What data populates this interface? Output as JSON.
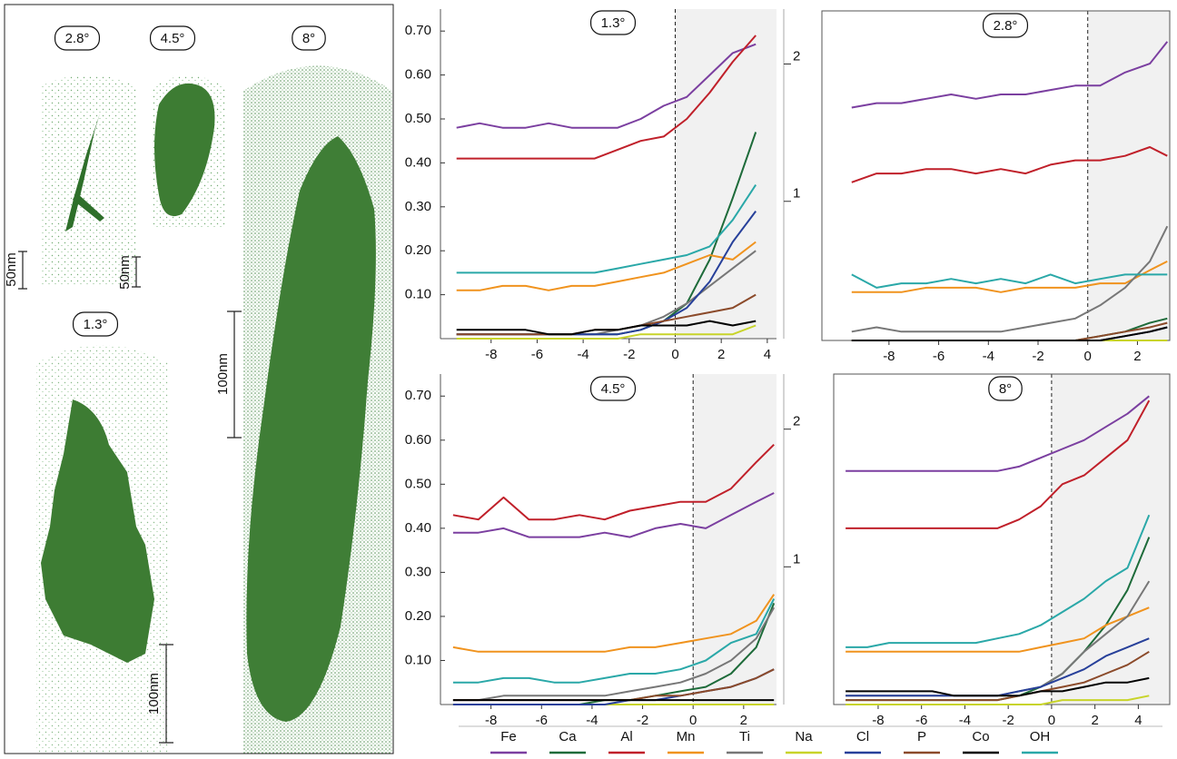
{
  "reconstructions": [
    {
      "label": "2.8°",
      "scale": "50nm"
    },
    {
      "label": "4.5°",
      "scale": "50nm"
    },
    {
      "label": "8°",
      "scale": "100nm"
    },
    {
      "label": "1.3°",
      "scale": "100nm"
    }
  ],
  "chart_data": [
    {
      "type": "line",
      "title": "1.3°",
      "x": [
        -9.5,
        -8.5,
        -7.5,
        -6.5,
        -5.5,
        -4.5,
        -3.5,
        -2.5,
        -1.5,
        -0.5,
        0.5,
        1.5,
        2.5,
        3.5
      ],
      "xlim": [
        -10.2,
        4.4
      ],
      "xticks": [
        -8,
        -6,
        -4,
        -2,
        0,
        2,
        4
      ],
      "ylim": [
        0,
        0.75
      ],
      "yticks": [
        {
          "value": 0.1,
          "label": "0.10"
        },
        {
          "value": 0.2,
          "label": "0.20"
        },
        {
          "value": 0.3,
          "label": "0.30"
        },
        {
          "value": 0.4,
          "label": "0.40"
        },
        {
          "value": 0.5,
          "label": "0.50"
        },
        {
          "value": 0.6,
          "label": "0.60"
        },
        {
          "value": 0.7,
          "label": "0.70"
        }
      ],
      "y2lim": [
        0,
        2.4
      ],
      "y2ticks": [
        1,
        2
      ],
      "series": [
        {
          "name": "Fe",
          "color": "#7b3fa0",
          "values": [
            0.48,
            0.49,
            0.48,
            0.48,
            0.49,
            0.48,
            0.48,
            0.48,
            0.5,
            0.53,
            0.55,
            0.6,
            0.65,
            0.67
          ]
        },
        {
          "name": "Ca",
          "color": "#1e6b3a",
          "values": [
            0.01,
            0.01,
            0.01,
            0.01,
            0.01,
            0.01,
            0.01,
            0.01,
            0.02,
            0.04,
            0.08,
            0.18,
            0.32,
            0.47
          ]
        },
        {
          "name": "Al",
          "color": "#c0202a",
          "values": [
            0.41,
            0.41,
            0.41,
            0.41,
            0.41,
            0.41,
            0.41,
            0.43,
            0.45,
            0.46,
            0.5,
            0.56,
            0.63,
            0.69
          ]
        },
        {
          "name": "Mn",
          "color": "#f0931e",
          "values": [
            0.11,
            0.11,
            0.12,
            0.12,
            0.11,
            0.12,
            0.12,
            0.13,
            0.14,
            0.15,
            0.17,
            0.19,
            0.18,
            0.22
          ]
        },
        {
          "name": "Ti",
          "color": "#777777",
          "values": [
            0.01,
            0.01,
            0.01,
            0.01,
            0.01,
            0.01,
            0.01,
            0.02,
            0.03,
            0.05,
            0.08,
            0.12,
            0.16,
            0.2
          ]
        },
        {
          "name": "Na",
          "color": "#c8d42a",
          "values": [
            0,
            0,
            0,
            0,
            0,
            0,
            0,
            0,
            0.01,
            0.01,
            0.01,
            0.01,
            0.01,
            0.03
          ]
        },
        {
          "name": "Cl",
          "color": "#27409a",
          "values": [
            0.01,
            0.01,
            0.01,
            0.01,
            0.01,
            0.01,
            0.01,
            0.01,
            0.02,
            0.04,
            0.07,
            0.13,
            0.22,
            0.29
          ]
        },
        {
          "name": "P",
          "color": "#8b4a2a",
          "values": [
            0.01,
            0.01,
            0.01,
            0.01,
            0.01,
            0.01,
            0.02,
            0.02,
            0.03,
            0.04,
            0.05,
            0.06,
            0.07,
            0.1
          ]
        },
        {
          "name": "Co",
          "color": "#000000",
          "values": [
            0.02,
            0.02,
            0.02,
            0.02,
            0.01,
            0.01,
            0.02,
            0.02,
            0.03,
            0.03,
            0.03,
            0.04,
            0.03,
            0.04
          ]
        },
        {
          "name": "OH",
          "color": "#2aa8a8",
          "values": [
            0.15,
            0.15,
            0.15,
            0.15,
            0.15,
            0.15,
            0.15,
            0.16,
            0.17,
            0.18,
            0.19,
            0.21,
            0.27,
            0.35
          ]
        }
      ]
    },
    {
      "type": "line",
      "title": "2.8°",
      "x": [
        -9.5,
        -8.5,
        -7.5,
        -6.5,
        -5.5,
        -4.5,
        -3.5,
        -2.5,
        -1.5,
        -0.5,
        0.5,
        1.5,
        2.5,
        3.2
      ],
      "xlim": [
        -10.7,
        3.3
      ],
      "xticks": [
        -8,
        -6,
        -4,
        -2,
        0,
        2
      ],
      "ylim": [
        0,
        0.75
      ],
      "series": [
        {
          "name": "Fe",
          "color": "#7b3fa0",
          "values": [
            0.53,
            0.54,
            0.54,
            0.55,
            0.56,
            0.55,
            0.56,
            0.56,
            0.57,
            0.58,
            0.58,
            0.61,
            0.63,
            0.68
          ]
        },
        {
          "name": "Ca",
          "color": "#1e6b3a",
          "values": [
            0,
            0,
            0,
            0,
            0,
            0,
            0,
            0,
            0,
            0,
            0.01,
            0.02,
            0.04,
            0.05
          ]
        },
        {
          "name": "Al",
          "color": "#c0202a",
          "values": [
            0.36,
            0.38,
            0.38,
            0.39,
            0.39,
            0.38,
            0.39,
            0.38,
            0.4,
            0.41,
            0.41,
            0.42,
            0.44,
            0.42
          ]
        },
        {
          "name": "Mn",
          "color": "#f0931e",
          "values": [
            0.11,
            0.11,
            0.11,
            0.12,
            0.12,
            0.12,
            0.11,
            0.12,
            0.12,
            0.12,
            0.13,
            0.13,
            0.16,
            0.18
          ]
        },
        {
          "name": "Ti",
          "color": "#777777",
          "values": [
            0.02,
            0.03,
            0.02,
            0.02,
            0.02,
            0.02,
            0.02,
            0.03,
            0.04,
            0.05,
            0.08,
            0.12,
            0.18,
            0.26
          ]
        },
        {
          "name": "Na",
          "color": "#c8d42a",
          "values": [
            0,
            0,
            0,
            0,
            0,
            0,
            0,
            0,
            0,
            0,
            0,
            0,
            0,
            0
          ]
        },
        {
          "name": "Cl",
          "color": "#27409a",
          "values": [
            0,
            0,
            0,
            0,
            0,
            0,
            0,
            0,
            0,
            0,
            0,
            0.01,
            0.02,
            0.03
          ]
        },
        {
          "name": "P",
          "color": "#8b4a2a",
          "values": [
            0,
            0,
            0,
            0,
            0,
            0,
            0,
            0,
            0,
            0,
            0.01,
            0.02,
            0.03,
            0.04
          ]
        },
        {
          "name": "Co",
          "color": "#000000",
          "values": [
            0,
            0,
            0,
            0,
            0,
            0,
            0,
            0,
            0,
            0,
            0,
            0.01,
            0.02,
            0.03
          ]
        },
        {
          "name": "OH",
          "color": "#2aa8a8",
          "values": [
            0.15,
            0.12,
            0.13,
            0.13,
            0.14,
            0.13,
            0.14,
            0.13,
            0.15,
            0.13,
            0.14,
            0.15,
            0.15,
            0.15
          ]
        }
      ]
    },
    {
      "type": "line",
      "title": "4.5°",
      "x": [
        -9.5,
        -8.5,
        -7.5,
        -6.5,
        -5.5,
        -4.5,
        -3.5,
        -2.5,
        -1.5,
        -0.5,
        0.5,
        1.5,
        2.5,
        3.2
      ],
      "xlim": [
        -10,
        3.3
      ],
      "xticks": [
        -8,
        -6,
        -4,
        -2,
        0,
        2
      ],
      "ylim": [
        0,
        0.75
      ],
      "yticks": [
        {
          "value": 0.1,
          "label": "0.10"
        },
        {
          "value": 0.2,
          "label": "0.20"
        },
        {
          "value": 0.3,
          "label": "0.30"
        },
        {
          "value": 0.4,
          "label": "0.40"
        },
        {
          "value": 0.5,
          "label": "0.50"
        },
        {
          "value": 0.6,
          "label": "0.60"
        },
        {
          "value": 0.7,
          "label": "0.70"
        }
      ],
      "y2lim": [
        0,
        2.4
      ],
      "y2ticks": [
        1,
        2
      ],
      "series": [
        {
          "name": "Fe",
          "color": "#7b3fa0",
          "values": [
            0.39,
            0.39,
            0.4,
            0.38,
            0.38,
            0.38,
            0.39,
            0.38,
            0.4,
            0.41,
            0.4,
            0.43,
            0.46,
            0.48
          ]
        },
        {
          "name": "Ca",
          "color": "#1e6b3a",
          "values": [
            0,
            0,
            0,
            0,
            0,
            0,
            0.01,
            0.01,
            0.02,
            0.03,
            0.04,
            0.07,
            0.13,
            0.23
          ]
        },
        {
          "name": "Al",
          "color": "#c0202a",
          "values": [
            0.43,
            0.42,
            0.47,
            0.42,
            0.42,
            0.43,
            0.42,
            0.44,
            0.45,
            0.46,
            0.46,
            0.49,
            0.55,
            0.59
          ]
        },
        {
          "name": "Mn",
          "color": "#f0931e",
          "values": [
            0.13,
            0.12,
            0.12,
            0.12,
            0.12,
            0.12,
            0.12,
            0.13,
            0.13,
            0.14,
            0.15,
            0.16,
            0.19,
            0.25
          ]
        },
        {
          "name": "Ti",
          "color": "#777777",
          "values": [
            0.01,
            0.01,
            0.02,
            0.02,
            0.02,
            0.02,
            0.02,
            0.03,
            0.04,
            0.05,
            0.07,
            0.1,
            0.15,
            0.22
          ]
        },
        {
          "name": "Na",
          "color": "#c8d42a",
          "values": [
            0,
            0,
            0,
            0,
            0,
            0,
            0,
            0,
            0,
            0,
            0,
            0,
            0,
            0
          ]
        },
        {
          "name": "Cl",
          "color": "#27409a",
          "values": [
            0,
            0,
            0,
            0,
            0,
            0,
            0,
            0.01,
            0.01,
            0.02,
            0.03,
            0.04,
            0.06,
            0.08
          ]
        },
        {
          "name": "P",
          "color": "#8b4a2a",
          "values": [
            0.01,
            0.01,
            0.01,
            0.01,
            0.01,
            0.01,
            0.01,
            0.01,
            0.02,
            0.02,
            0.03,
            0.04,
            0.06,
            0.08
          ]
        },
        {
          "name": "Co",
          "color": "#000000",
          "values": [
            0.01,
            0.01,
            0.01,
            0.01,
            0.01,
            0.01,
            0.01,
            0.01,
            0.01,
            0.01,
            0.01,
            0.01,
            0.01,
            0.01
          ]
        },
        {
          "name": "OH",
          "color": "#2aa8a8",
          "values": [
            0.05,
            0.05,
            0.06,
            0.06,
            0.05,
            0.05,
            0.06,
            0.07,
            0.07,
            0.08,
            0.1,
            0.14,
            0.16,
            0.24
          ]
        }
      ]
    },
    {
      "type": "line",
      "title": "8°",
      "x": [
        -9.5,
        -8.5,
        -7.5,
        -6.5,
        -5.5,
        -4.5,
        -3.5,
        -2.5,
        -1.5,
        -0.5,
        0.5,
        1.5,
        2.5,
        3.5,
        4.5
      ],
      "xlim": [
        -10.05,
        5.45
      ],
      "xticks": [
        -8,
        -6,
        -4,
        -2,
        0,
        2,
        4
      ],
      "ylim": [
        0,
        0.75
      ],
      "series": [
        {
          "name": "Fe",
          "color": "#7b3fa0",
          "values": [
            0.53,
            0.53,
            0.53,
            0.53,
            0.53,
            0.53,
            0.53,
            0.53,
            0.54,
            0.56,
            0.58,
            0.6,
            0.63,
            0.66,
            0.7
          ]
        },
        {
          "name": "Ca",
          "color": "#1e6b3a",
          "values": [
            0.01,
            0.01,
            0.01,
            0.01,
            0.01,
            0.01,
            0.01,
            0.01,
            0.02,
            0.04,
            0.07,
            0.12,
            0.18,
            0.26,
            0.38
          ]
        },
        {
          "name": "Al",
          "color": "#c0202a",
          "values": [
            0.4,
            0.4,
            0.4,
            0.4,
            0.4,
            0.4,
            0.4,
            0.4,
            0.42,
            0.45,
            0.5,
            0.52,
            0.56,
            0.6,
            0.69
          ]
        },
        {
          "name": "Mn",
          "color": "#f0931e",
          "values": [
            0.12,
            0.12,
            0.12,
            0.12,
            0.12,
            0.12,
            0.12,
            0.12,
            0.12,
            0.13,
            0.14,
            0.15,
            0.18,
            0.2,
            0.22
          ]
        },
        {
          "name": "Ti",
          "color": "#777777",
          "values": [
            0.02,
            0.02,
            0.02,
            0.02,
            0.02,
            0.02,
            0.02,
            0.02,
            0.03,
            0.04,
            0.07,
            0.12,
            0.16,
            0.2,
            0.28
          ]
        },
        {
          "name": "Na",
          "color": "#c8d42a",
          "values": [
            0,
            0,
            0,
            0,
            0,
            0,
            0,
            0,
            0,
            0,
            0.01,
            0.01,
            0.01,
            0.01,
            0.02
          ]
        },
        {
          "name": "Cl",
          "color": "#27409a",
          "values": [
            0.02,
            0.02,
            0.02,
            0.02,
            0.02,
            0.02,
            0.02,
            0.02,
            0.03,
            0.04,
            0.06,
            0.08,
            0.11,
            0.13,
            0.15
          ]
        },
        {
          "name": "P",
          "color": "#8b4a2a",
          "values": [
            0.01,
            0.01,
            0.01,
            0.01,
            0.01,
            0.01,
            0.01,
            0.01,
            0.02,
            0.03,
            0.04,
            0.05,
            0.07,
            0.09,
            0.12
          ]
        },
        {
          "name": "Co",
          "color": "#000000",
          "values": [
            0.03,
            0.03,
            0.03,
            0.03,
            0.03,
            0.02,
            0.02,
            0.02,
            0.02,
            0.03,
            0.03,
            0.04,
            0.05,
            0.05,
            0.06
          ]
        },
        {
          "name": "OH",
          "color": "#2aa8a8",
          "values": [
            0.13,
            0.13,
            0.14,
            0.14,
            0.14,
            0.14,
            0.14,
            0.15,
            0.16,
            0.18,
            0.21,
            0.24,
            0.28,
            0.31,
            0.43
          ]
        }
      ]
    }
  ]
}
